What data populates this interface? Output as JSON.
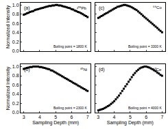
{
  "chart_data": [
    {
      "type": "scatter",
      "title": "(a)",
      "ylabel": "Normalized Intensity",
      "tick_labels": "y",
      "color": "#000000",
      "marker": "square",
      "annotations": [
        {
          "text": "²⁰⁸Pb"
        },
        {
          "text": "Boiling point = 1800 K"
        }
      ],
      "xlim": [
        2.8,
        7.2
      ],
      "xticks": [
        3,
        4,
        5,
        6,
        7
      ],
      "ylim": [
        0,
        1.05
      ],
      "yticks": [
        {
          "value": 0,
          "label": "0.0"
        },
        0.2,
        0.4,
        0.6,
        0.8,
        {
          "value": 1,
          "label": "1.0"
        }
      ],
      "x": [
        3.0,
        3.1,
        3.2,
        3.3,
        3.4,
        3.5,
        3.6,
        3.7,
        3.8,
        3.9,
        4.0,
        4.1,
        4.2,
        4.3,
        4.4,
        4.5,
        4.6,
        4.7,
        4.8,
        4.9,
        5.0,
        5.1,
        5.2,
        5.3,
        5.4,
        5.5,
        5.6,
        5.7,
        5.8,
        5.9,
        6.0,
        6.1,
        6.2,
        6.3,
        6.4,
        6.5,
        6.6,
        6.7,
        6.8,
        6.9,
        7.0
      ],
      "values": [
        0.79,
        0.8,
        0.82,
        0.83,
        0.85,
        0.86,
        0.87,
        0.89,
        0.9,
        0.91,
        0.92,
        0.93,
        0.94,
        0.95,
        0.96,
        0.97,
        0.98,
        0.98,
        0.99,
        0.99,
        1.0,
        1.0,
        0.99,
        0.99,
        0.98,
        0.97,
        0.96,
        0.95,
        0.94,
        0.93,
        0.91,
        0.9,
        0.88,
        0.87,
        0.85,
        0.84,
        0.82,
        0.8,
        0.78,
        0.76,
        0.74
      ]
    },
    {
      "type": "scatter",
      "title": "(b)",
      "xlabel": "Sampling Depth (mm)",
      "ylabel": "Normalized Intensity",
      "color": "#000000",
      "marker": "square",
      "annotations": [
        {
          "text": "⁶⁰Ni"
        },
        {
          "text": "Boiling point = 2300 K"
        }
      ],
      "xlim": [
        2.8,
        7.2
      ],
      "xticks": [
        3,
        4,
        5,
        6,
        7
      ],
      "ylim": [
        0,
        1.05
      ],
      "yticks": [
        {
          "value": 0,
          "label": "0.0"
        },
        0.2,
        0.4,
        0.6,
        0.8,
        {
          "value": 1,
          "label": "1.0"
        }
      ],
      "x": [
        3.0,
        3.1,
        3.2,
        3.3,
        3.4,
        3.5,
        3.6,
        3.7,
        3.8,
        3.9,
        4.0,
        4.1,
        4.2,
        4.3,
        4.4,
        4.5,
        4.6,
        4.7,
        4.8,
        4.9,
        5.0,
        5.1,
        5.2,
        5.3,
        5.4,
        5.5,
        5.6,
        5.7,
        5.8,
        5.9,
        6.0,
        6.1,
        6.2,
        6.3,
        6.4,
        6.5,
        6.6,
        6.7,
        6.8,
        6.9,
        7.0
      ],
      "values": [
        0.95,
        0.96,
        0.97,
        0.98,
        0.99,
        0.99,
        1.0,
        1.0,
        1.0,
        1.0,
        0.99,
        0.99,
        0.98,
        0.97,
        0.96,
        0.95,
        0.94,
        0.92,
        0.91,
        0.89,
        0.87,
        0.85,
        0.83,
        0.81,
        0.79,
        0.77,
        0.75,
        0.73,
        0.71,
        0.69,
        0.67,
        0.65,
        0.63,
        0.61,
        0.59,
        0.57,
        0.55,
        0.53,
        0.51,
        0.49,
        0.47
      ]
    },
    {
      "type": "scatter",
      "title": "(c)",
      "tick_labels": false,
      "color": "#000000",
      "marker": "square",
      "annotations": [
        {
          "text": "⁵⁹Co"
        },
        {
          "text": "Boiling point = 3300 K"
        }
      ],
      "xlim": [
        2.8,
        7.2
      ],
      "xticks": [
        3,
        4,
        5,
        6,
        7
      ],
      "ylim": [
        0,
        1.05
      ],
      "yticks": [
        {
          "value": 0,
          "label": "0.0"
        },
        0.2,
        0.4,
        0.6,
        0.8,
        {
          "value": 1,
          "label": "1.0"
        }
      ],
      "x": [
        3.0,
        3.1,
        3.2,
        3.3,
        3.4,
        3.5,
        3.6,
        3.7,
        3.8,
        3.9,
        4.0,
        4.1,
        4.2,
        4.3,
        4.4,
        4.5,
        4.6,
        4.7,
        4.8,
        4.9,
        5.0,
        5.1,
        5.2,
        5.3,
        5.4,
        5.5,
        5.6,
        5.7,
        5.8,
        5.9,
        6.0,
        6.1,
        6.2,
        6.3,
        6.4,
        6.5,
        6.6,
        6.7,
        6.8,
        6.9,
        7.0
      ],
      "values": [
        0.72,
        0.74,
        0.76,
        0.78,
        0.8,
        0.82,
        0.84,
        0.86,
        0.88,
        0.9,
        0.92,
        0.94,
        0.96,
        0.97,
        0.98,
        0.99,
        1.0,
        1.0,
        0.99,
        0.98,
        0.97,
        0.95,
        0.93,
        0.91,
        0.89,
        0.86,
        0.83,
        0.8,
        0.77,
        0.74,
        0.71,
        0.68,
        0.65,
        0.62,
        0.59,
        0.56,
        0.53,
        0.5,
        0.47,
        0.44,
        0.41
      ]
    },
    {
      "type": "scatter",
      "title": "(d)",
      "xlabel": "Sampling Depth (mm)",
      "tick_labels": "x",
      "color": "#000000",
      "marker": "square",
      "annotations": [
        {
          "text": "¹⁴⁰Ce"
        },
        {
          "text": "Boiling point = 4000 K"
        }
      ],
      "xlim": [
        2.8,
        7.2
      ],
      "xticks": [
        3,
        4,
        5,
        6,
        7
      ],
      "ylim": [
        0,
        1.05
      ],
      "yticks": [
        {
          "value": 0,
          "label": "0.0"
        },
        0.2,
        0.4,
        0.6,
        0.8,
        {
          "value": 1,
          "label": "1.0"
        }
      ],
      "x": [
        3.0,
        3.1,
        3.2,
        3.3,
        3.4,
        3.5,
        3.6,
        3.7,
        3.8,
        3.9,
        4.0,
        4.1,
        4.2,
        4.3,
        4.4,
        4.5,
        4.6,
        4.7,
        4.8,
        4.9,
        5.0,
        5.1,
        5.2,
        5.3,
        5.4,
        5.5,
        5.6,
        5.7,
        5.8,
        5.9,
        6.0,
        6.1,
        6.2,
        6.3,
        6.4,
        6.5,
        6.6,
        6.7,
        6.8,
        6.9,
        7.0
      ],
      "values": [
        0.05,
        0.06,
        0.07,
        0.08,
        0.1,
        0.12,
        0.14,
        0.16,
        0.19,
        0.22,
        0.25,
        0.29,
        0.33,
        0.37,
        0.42,
        0.47,
        0.52,
        0.57,
        0.62,
        0.67,
        0.72,
        0.77,
        0.82,
        0.86,
        0.9,
        0.93,
        0.96,
        0.98,
        0.99,
        1.0,
        1.0,
        0.99,
        0.98,
        0.96,
        0.94,
        0.92,
        0.9,
        0.87,
        0.85,
        0.82,
        0.8
      ]
    }
  ]
}
